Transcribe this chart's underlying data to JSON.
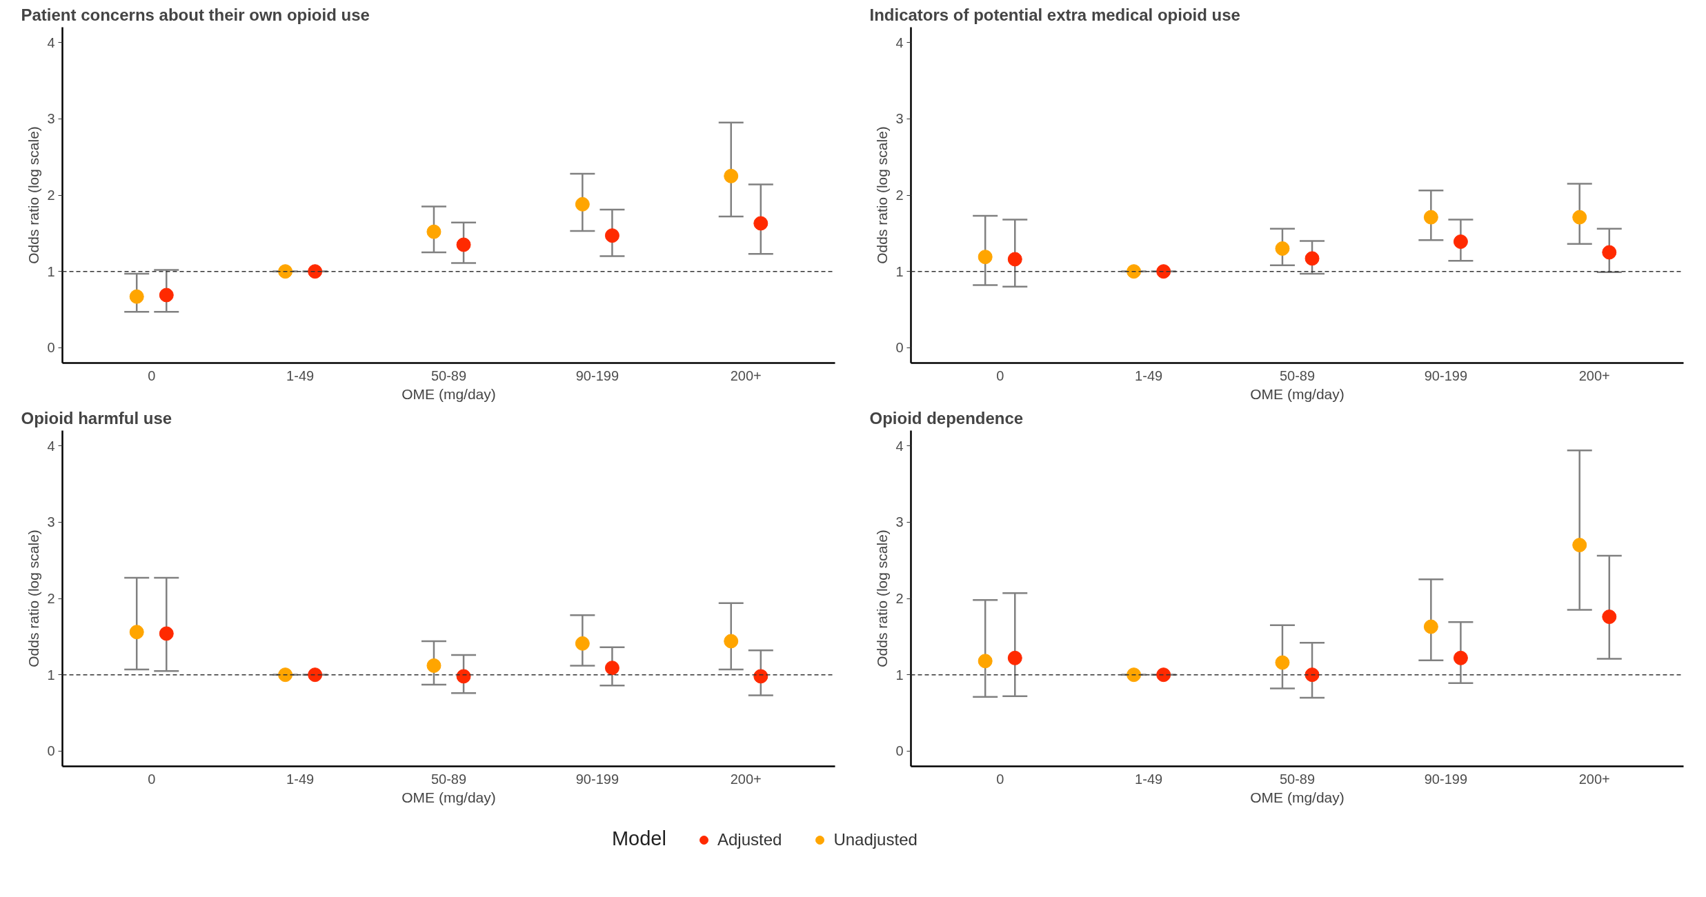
{
  "chart_data": [
    {
      "type": "scatter",
      "title": "Patient concerns about their own opioid use",
      "xlabel": "OME (mg/day)",
      "ylabel": "Odds ratio (log scale)",
      "categories": [
        "0",
        "1-49",
        "50-89",
        "90-199",
        "200+"
      ],
      "ylim": [
        -0.2,
        4.2
      ],
      "yticks": [
        0,
        1,
        2,
        3,
        4
      ],
      "grid": false,
      "marker": "circle",
      "legend": "bottom",
      "legend_title": "Model",
      "ref_lines": [
        {
          "axis": "y",
          "value": 1,
          "line_style": "dashed",
          "color": "#333333"
        }
      ],
      "series": [
        {
          "name": "Adjusted",
          "color": "#ff2a00",
          "values": [
            0.69,
            1,
            1.35,
            1.47,
            1.63
          ],
          "errors": [
            [
              0.47,
              1.02
            ],
            [
              1,
              1
            ],
            [
              1.11,
              1.64
            ],
            [
              1.2,
              1.81
            ],
            [
              1.23,
              2.14
            ]
          ]
        },
        {
          "name": "Unadjusted",
          "color": "#ffa500",
          "values": [
            0.67,
            1,
            1.52,
            1.88,
            2.25
          ],
          "errors": [
            [
              0.47,
              0.97
            ],
            [
              1,
              1
            ],
            [
              1.25,
              1.85
            ],
            [
              1.53,
              2.28
            ],
            [
              1.72,
              2.95
            ]
          ]
        }
      ]
    },
    {
      "type": "scatter",
      "title": "Indicators of potential extra medical opioid use",
      "xlabel": "OME (mg/day)",
      "ylabel": "Odds ratio (log scale)",
      "categories": [
        "0",
        "1-49",
        "50-89",
        "90-199",
        "200+"
      ],
      "ylim": [
        -0.2,
        4.2
      ],
      "yticks": [
        0,
        1,
        2,
        3,
        4
      ],
      "grid": false,
      "marker": "circle",
      "ref_lines": [
        {
          "axis": "y",
          "value": 1,
          "line_style": "dashed",
          "color": "#333333"
        }
      ],
      "series": [
        {
          "name": "Adjusted",
          "color": "#ff2a00",
          "values": [
            1.16,
            1,
            1.17,
            1.39,
            1.25
          ],
          "errors": [
            [
              0.8,
              1.68
            ],
            [
              1,
              1
            ],
            [
              0.97,
              1.4
            ],
            [
              1.14,
              1.68
            ],
            [
              0.99,
              1.56
            ]
          ]
        },
        {
          "name": "Unadjusted",
          "color": "#ffa500",
          "values": [
            1.19,
            1,
            1.3,
            1.71,
            1.71
          ],
          "errors": [
            [
              0.82,
              1.73
            ],
            [
              1,
              1
            ],
            [
              1.08,
              1.56
            ],
            [
              1.41,
              2.06
            ],
            [
              1.36,
              2.15
            ]
          ]
        }
      ]
    },
    {
      "type": "scatter",
      "title": "Opioid harmful use",
      "xlabel": "OME (mg/day)",
      "ylabel": "Odds ratio (log scale)",
      "categories": [
        "0",
        "1-49",
        "50-89",
        "90-199",
        "200+"
      ],
      "ylim": [
        -0.2,
        4.2
      ],
      "yticks": [
        0,
        1,
        2,
        3,
        4
      ],
      "grid": false,
      "marker": "circle",
      "ref_lines": [
        {
          "axis": "y",
          "value": 1,
          "line_style": "dashed",
          "color": "#333333"
        }
      ],
      "series": [
        {
          "name": "Adjusted",
          "color": "#ff2a00",
          "values": [
            1.54,
            1,
            0.98,
            1.09,
            0.98
          ],
          "errors": [
            [
              1.05,
              2.27
            ],
            [
              1,
              1
            ],
            [
              0.76,
              1.26
            ],
            [
              0.86,
              1.36
            ],
            [
              0.73,
              1.32
            ]
          ]
        },
        {
          "name": "Unadjusted",
          "color": "#ffa500",
          "values": [
            1.56,
            1,
            1.12,
            1.41,
            1.44
          ],
          "errors": [
            [
              1.07,
              2.27
            ],
            [
              1,
              1
            ],
            [
              0.87,
              1.44
            ],
            [
              1.12,
              1.78
            ],
            [
              1.07,
              1.94
            ]
          ]
        }
      ]
    },
    {
      "type": "scatter",
      "title": "Opioid dependence",
      "xlabel": "OME (mg/day)",
      "ylabel": "Odds ratio (log scale)",
      "categories": [
        "0",
        "1-49",
        "50-89",
        "90-199",
        "200+"
      ],
      "ylim": [
        -0.2,
        4.2
      ],
      "yticks": [
        0,
        1,
        2,
        3,
        4
      ],
      "grid": false,
      "marker": "circle",
      "ref_lines": [
        {
          "axis": "y",
          "value": 1,
          "line_style": "dashed",
          "color": "#333333"
        }
      ],
      "series": [
        {
          "name": "Adjusted",
          "color": "#ff2a00",
          "values": [
            1.22,
            1,
            1.0,
            1.22,
            1.76
          ],
          "errors": [
            [
              0.72,
              2.07
            ],
            [
              1,
              1
            ],
            [
              0.7,
              1.42
            ],
            [
              0.89,
              1.69
            ],
            [
              1.21,
              2.56
            ]
          ]
        },
        {
          "name": "Unadjusted",
          "color": "#ffa500",
          "values": [
            1.18,
            1,
            1.16,
            1.63,
            2.7
          ],
          "errors": [
            [
              0.71,
              1.98
            ],
            [
              1,
              1
            ],
            [
              0.82,
              1.65
            ],
            [
              1.19,
              2.25
            ],
            [
              1.85,
              3.94
            ]
          ]
        }
      ]
    }
  ]
}
